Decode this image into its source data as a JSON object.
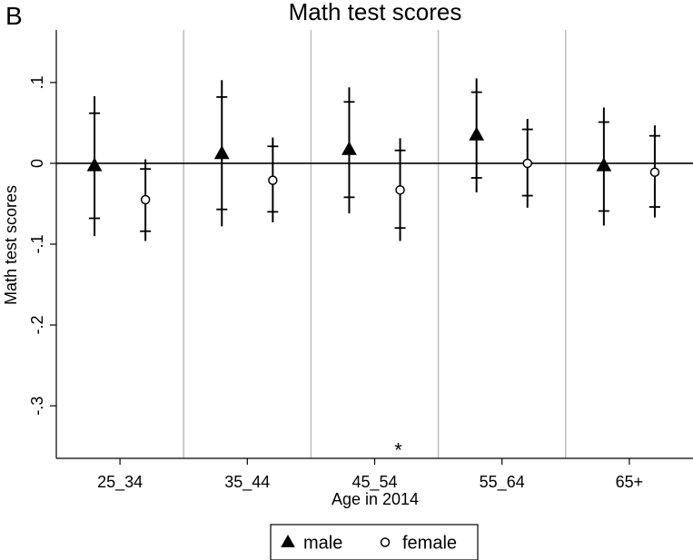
{
  "panel_label": "B",
  "chart_data": {
    "type": "scatter",
    "title": "Math test scores",
    "xlabel": "Age in 2014",
    "ylabel": "Math test scores",
    "categories": [
      "25_34",
      "35_44",
      "45_54",
      "55_64",
      "65+"
    ],
    "ylim": [
      -0.365,
      0.165
    ],
    "yticks": [
      {
        "value": 0.1,
        "label": ".1"
      },
      {
        "value": 0.0,
        "label": "0"
      },
      {
        "value": -0.1,
        "label": "-.1"
      },
      {
        "value": -0.2,
        "label": "-.2"
      },
      {
        "value": -0.3,
        "label": "-.3"
      }
    ],
    "reference_line": 0,
    "grid": false,
    "category_separators": true,
    "legend_position": "bottom",
    "series": [
      {
        "name": "male",
        "marker": "filled-triangle",
        "color": "#000000",
        "values": [
          -0.003,
          0.012,
          0.017,
          0.035,
          -0.003
        ],
        "ci90": [
          [
            -0.068,
            0.062
          ],
          [
            -0.057,
            0.082
          ],
          [
            -0.042,
            0.076
          ],
          [
            -0.018,
            0.088
          ],
          [
            -0.059,
            0.051
          ]
        ],
        "ci95": [
          [
            -0.09,
            0.083
          ],
          [
            -0.078,
            0.103
          ],
          [
            -0.062,
            0.094
          ],
          [
            -0.036,
            0.105
          ],
          [
            -0.077,
            0.069
          ]
        ]
      },
      {
        "name": "female",
        "marker": "hollow-circle",
        "color": "#000000",
        "values": [
          -0.045,
          -0.021,
          -0.033,
          0.0,
          -0.011
        ],
        "ci90": [
          [
            -0.084,
            -0.007
          ],
          [
            -0.06,
            0.021
          ],
          [
            -0.08,
            0.016
          ],
          [
            -0.04,
            0.042
          ],
          [
            -0.054,
            0.034
          ]
        ],
        "ci95": [
          [
            -0.096,
            0.005
          ],
          [
            -0.073,
            0.032
          ],
          [
            -0.096,
            0.031
          ],
          [
            -0.055,
            0.055
          ],
          [
            -0.067,
            0.047
          ]
        ]
      }
    ],
    "annotations": [
      {
        "text": "*",
        "category": "45_54",
        "y": -0.35
      }
    ]
  }
}
